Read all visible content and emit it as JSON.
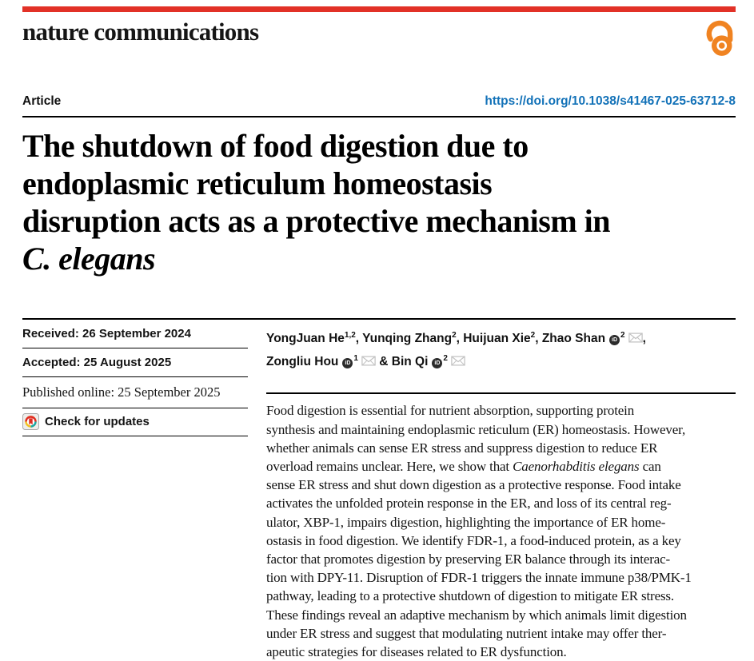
{
  "colors": {
    "brand_red": "#e23127",
    "open_access_orange": "#f08321",
    "doi_blue": "#1372b8"
  },
  "icons": {
    "open_access": "open-access-icon",
    "check_updates": "crossmark-circle-icon",
    "orcid": "orcid-icon",
    "email": "email-icon"
  },
  "header": {
    "journal": "nature communications",
    "article_type": "Article",
    "doi": "https://doi.org/10.1038/s41467-025-63712-8"
  },
  "title": {
    "lines": [
      {
        "text": "The shutdown of food digestion due to",
        "italic": false
      },
      {
        "text": "endoplasmic reticulum homeostasis",
        "italic": false
      },
      {
        "text": "disruption acts as a protective mechanism in",
        "italic": false
      },
      {
        "text": "C. elegans",
        "italic": true
      }
    ]
  },
  "meta": {
    "rows": [
      {
        "text": "Received: 26 September 2024",
        "style": "sans-bold"
      },
      {
        "text": "Accepted: 25 August 2025",
        "style": "sans-bold"
      },
      {
        "text": "Published online: 25 September 2025",
        "style": "serif"
      }
    ],
    "check_updates_label": "Check for updates"
  },
  "authors": {
    "lines": [
      [
        {
          "t": "YongJuan He"
        },
        {
          "sup": "1,2"
        },
        {
          "t": ", Yunqing Zhang"
        },
        {
          "sup": "2"
        },
        {
          "t": ", Huijuan Xie"
        },
        {
          "sup": "2"
        },
        {
          "t": ", Zhao Shan"
        },
        {
          "icon": "orcid"
        },
        {
          "sup": "2"
        },
        {
          "icon": "mail"
        },
        {
          "t": ","
        }
      ],
      [
        {
          "t": "Zongliu Hou"
        },
        {
          "icon": "orcid"
        },
        {
          "sup": "1"
        },
        {
          "icon": "mail"
        },
        {
          "t": " & Bin Qi"
        },
        {
          "icon": "orcid"
        },
        {
          "sup": "2"
        },
        {
          "icon": "mail"
        }
      ]
    ]
  },
  "abstract": {
    "lines": [
      [
        {
          "t": "Food digestion is essential for nutrient absorption, supporting protein"
        }
      ],
      [
        {
          "t": "synthesis and maintaining endoplasmic reticulum (ER) homeostasis. However,"
        }
      ],
      [
        {
          "t": "whether animals can sense ER stress and suppress digestion to reduce ER"
        }
      ],
      [
        {
          "t": "overload remains unclear. Here, we show that "
        },
        {
          "t": "Caenorhabditis elegans",
          "i": true
        },
        {
          "t": " can"
        }
      ],
      [
        {
          "t": "sense ER stress and shut down digestion as a protective response. Food intake"
        }
      ],
      [
        {
          "t": "activates the unfolded protein response in the ER, and loss of its central reg-"
        }
      ],
      [
        {
          "t": "ulator, XBP-1, impairs digestion, highlighting the importance of ER home-"
        }
      ],
      [
        {
          "t": "ostasis in food digestion. We identify FDR-1, a food-induced protein, as a key"
        }
      ],
      [
        {
          "t": "factor that promotes digestion by preserving ER balance through its interac-"
        }
      ],
      [
        {
          "t": "tion with DPY-11. Disruption of FDR-1 triggers the innate immune p38/PMK-1"
        }
      ],
      [
        {
          "t": "pathway, leading to a protective shutdown of digestion to mitigate ER stress."
        }
      ],
      [
        {
          "t": "These findings reveal an adaptive mechanism by which animals limit digestion"
        }
      ],
      [
        {
          "t": "under ER stress and suggest that modulating nutrient intake may offer ther-"
        }
      ],
      [
        {
          "t": "apeutic strategies for diseases related to ER dysfunction."
        }
      ]
    ]
  }
}
